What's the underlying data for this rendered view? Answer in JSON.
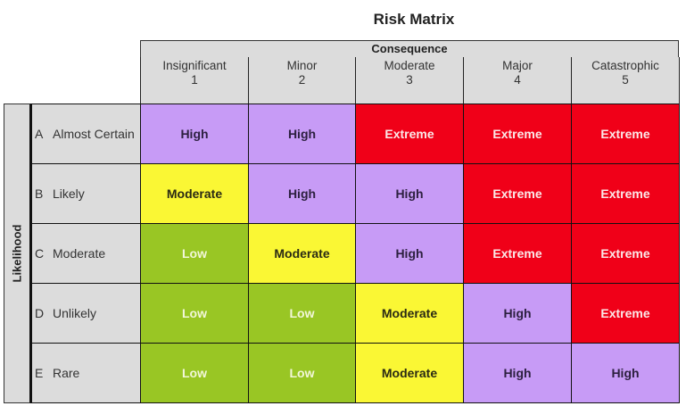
{
  "title": "Risk Matrix",
  "consequence_label": "Consequence",
  "likelihood_label": "Likelihood",
  "colors": {
    "Low": {
      "bg": "#99c624",
      "fg": "#f2f7d8"
    },
    "Moderate": {
      "bg": "#faf734",
      "fg": "#2a2a14"
    },
    "High": {
      "bg": "#c79bf6",
      "fg": "#2d2040"
    },
    "Extreme": {
      "bg": "#f00018",
      "fg": "#fbe9e9"
    },
    "header_bg": "#dcdcdc"
  },
  "columns": [
    {
      "name": "Insignificant",
      "num": "1"
    },
    {
      "name": "Minor",
      "num": "2"
    },
    {
      "name": "Moderate",
      "num": "3"
    },
    {
      "name": "Major",
      "num": "4"
    },
    {
      "name": "Catastrophic",
      "num": "5"
    }
  ],
  "rows": [
    {
      "letter": "A",
      "name": "Almost Certain",
      "cells": [
        "High",
        "High",
        "Extreme",
        "Extreme",
        "Extreme"
      ]
    },
    {
      "letter": "B",
      "name": "Likely",
      "cells": [
        "Moderate",
        "High",
        "High",
        "Extreme",
        "Extreme"
      ]
    },
    {
      "letter": "C",
      "name": "Moderate",
      "cells": [
        "Low",
        "Moderate",
        "High",
        "Extreme",
        "Extreme"
      ]
    },
    {
      "letter": "D",
      "name": "Unlikely",
      "cells": [
        "Low",
        "Low",
        "Moderate",
        "High",
        "Extreme"
      ]
    },
    {
      "letter": "E",
      "name": "Rare",
      "cells": [
        "Low",
        "Low",
        "Moderate",
        "High",
        "High"
      ]
    }
  ],
  "chart_data": {
    "type": "heatmap",
    "title": "Risk Matrix",
    "xlabel": "Consequence",
    "ylabel": "Likelihood",
    "x": [
      "Insignificant 1",
      "Minor 2",
      "Moderate 3",
      "Major 4",
      "Catastrophic 5"
    ],
    "y": [
      "A Almost Certain",
      "B Likely",
      "C Moderate",
      "D Unlikely",
      "E Rare"
    ],
    "values": [
      [
        "High",
        "High",
        "Extreme",
        "Extreme",
        "Extreme"
      ],
      [
        "Moderate",
        "High",
        "High",
        "Extreme",
        "Extreme"
      ],
      [
        "Low",
        "Moderate",
        "High",
        "Extreme",
        "Extreme"
      ],
      [
        "Low",
        "Low",
        "Moderate",
        "High",
        "Extreme"
      ],
      [
        "Low",
        "Low",
        "Moderate",
        "High",
        "High"
      ]
    ],
    "legend": {
      "Low": "#99c624",
      "Moderate": "#faf734",
      "High": "#c79bf6",
      "Extreme": "#f00018"
    }
  }
}
